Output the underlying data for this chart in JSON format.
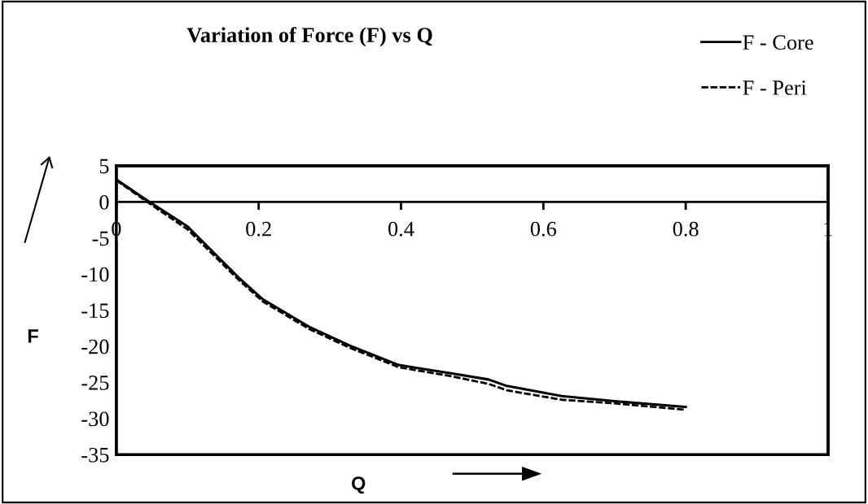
{
  "chart_data": {
    "type": "line",
    "title": "Variation of Force (F) vs Q",
    "xlabel": "Q",
    "ylabel": "F",
    "x": [
      0,
      0.042,
      0.1,
      0.172,
      0.206,
      0.271,
      0.328,
      0.397,
      0.474,
      0.523,
      0.549,
      0.626,
      0.7,
      0.8
    ],
    "series": [
      {
        "name": "F - Core",
        "color": "#000000",
        "line_style": "solid",
        "values": [
          3.1,
          0.3,
          -3.4,
          -10.5,
          -13.5,
          -17.3,
          -19.9,
          -22.6,
          -23.8,
          -24.6,
          -25.5,
          -26.9,
          -27.6,
          -28.4
        ]
      },
      {
        "name": "F - Peri",
        "color": "#000000",
        "line_style": "dashed",
        "values": [
          3.0,
          0.1,
          -3.8,
          -10.8,
          -13.8,
          -17.6,
          -20.2,
          -22.9,
          -24.2,
          -25.2,
          -26.1,
          -27.4,
          -27.9,
          -28.8
        ]
      }
    ],
    "xlim": [
      0,
      1
    ],
    "xticks": [
      0,
      0.2,
      0.4,
      0.6,
      0.8,
      1
    ],
    "ylim": [
      -35,
      5
    ],
    "yticks": [
      -35,
      -30,
      -25,
      -20,
      -15,
      -10,
      -5,
      0,
      5
    ],
    "grid": false,
    "legend": "top right",
    "marker": "none"
  }
}
